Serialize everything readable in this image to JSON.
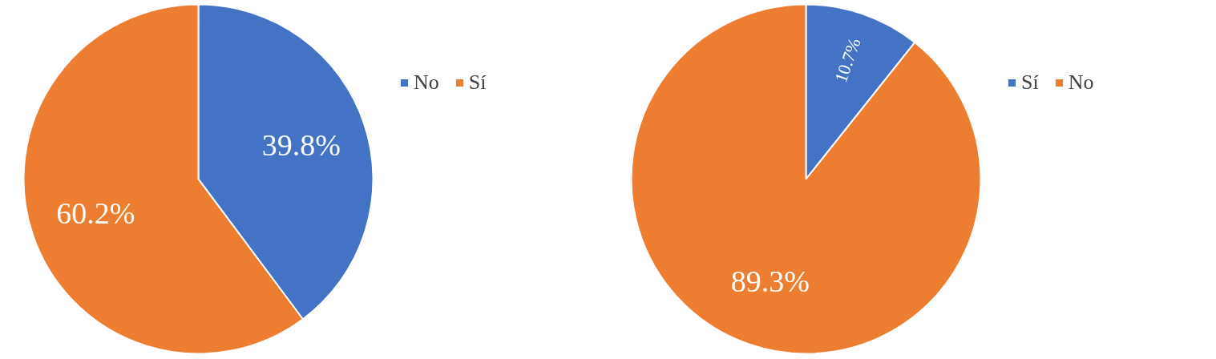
{
  "chart_data": [
    {
      "type": "pie",
      "categories": [
        "No",
        "Sí"
      ],
      "values": [
        39.8,
        60.2
      ],
      "value_labels": [
        "39.8%",
        "60.2%"
      ],
      "colors": [
        "#4472c4",
        "#ed7d31"
      ],
      "legend": "right"
    },
    {
      "type": "pie",
      "categories": [
        "Sí",
        "No"
      ],
      "values": [
        10.7,
        89.3
      ],
      "value_labels": [
        "10.7%",
        "89.3%"
      ],
      "colors": [
        "#4472c4",
        "#ed7d31"
      ],
      "legend": "right"
    }
  ]
}
